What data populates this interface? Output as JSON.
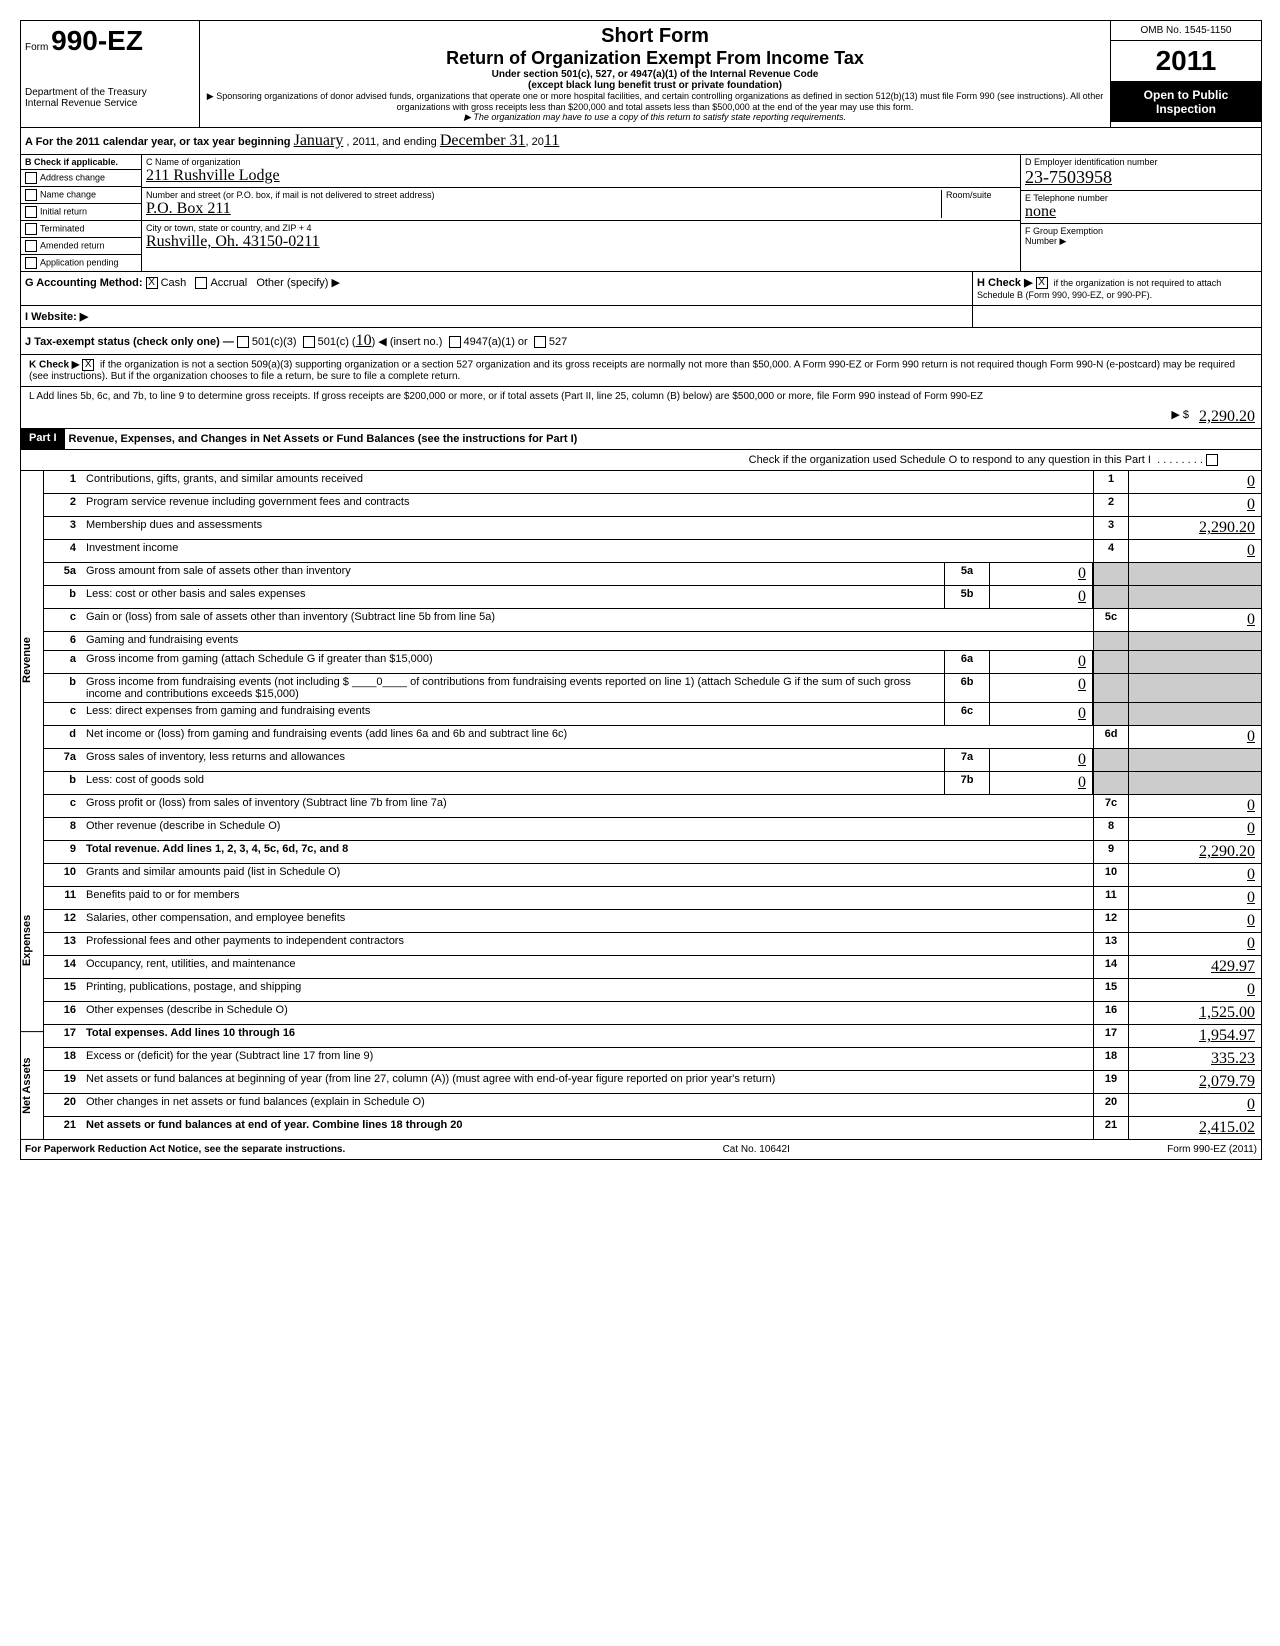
{
  "meta": {
    "omb": "OMB No. 1545-1150",
    "formNumber": "990-EZ",
    "formPrefix": "Form",
    "year": "2011",
    "shortForm": "Short Form",
    "returnTitle": "Return of Organization Exempt From Income Tax",
    "subtitle1": "Under section 501(c), 527, or 4947(a)(1) of the Internal Revenue Code",
    "subtitle2": "(except black lung benefit trust or private foundation)",
    "sponsoring": "▶ Sponsoring organizations of donor advised funds, organizations that operate one or more hospital facilities, and certain controlling organizations as defined in section 512(b)(13) must file Form 990 (see instructions). All other organizations with gross receipts less than $200,000 and total assets less than $500,000 at the end of the year may use this form.",
    "stateReq": "▶ The organization may have to use a copy of this return to satisfy state reporting requirements.",
    "dept": "Department of the Treasury",
    "irs": "Internal Revenue Service",
    "openPublic": "Open to Public Inspection"
  },
  "rowA": {
    "label": "A For the 2011 calendar year, or tax year beginning",
    "begin": "January",
    "mid": ", 2011, and ending",
    "end": "December 31",
    "yr": ", 20",
    "yrVal": "11"
  },
  "colB": {
    "header": "B Check if applicable.",
    "items": [
      "Address change",
      "Name change",
      "Initial return",
      "Terminated",
      "Amended return",
      "Application pending"
    ]
  },
  "colC": {
    "nameLabel": "C Name of organization",
    "nameVal": "211 Rushville Lodge",
    "streetLabel": "Number and street (or P.O. box, if mail is not delivered to street address)",
    "roomLabel": "Room/suite",
    "streetVal": "P.O. Box 211",
    "cityLabel": "City or town, state or country, and ZIP + 4",
    "cityVal": "Rushville, Oh. 43150-0211"
  },
  "colD": {
    "einLabel": "D Employer identification number",
    "einVal": "23-7503958",
    "phoneLabel": "E Telephone number",
    "phoneVal": "none",
    "groupLabel": "F Group Exemption",
    "groupLabel2": "Number ▶"
  },
  "rowG": {
    "label": "G Accounting Method:",
    "cash": "Cash",
    "accrual": "Accrual",
    "other": "Other (specify) ▶"
  },
  "rowH": {
    "label": "H Check ▶",
    "text": "if the organization is not required to attach Schedule B (Form 990, 990-EZ, or 990-PF)."
  },
  "rowI": {
    "label": "I  Website: ▶"
  },
  "rowJ": {
    "label": "J Tax-exempt status (check only one) —",
    "c3": "501(c)(3)",
    "c": "501(c) (",
    "insert": "10",
    "cEnd": ") ◀ (insert no.)",
    "a4947": "4947(a)(1) or",
    "s527": "527"
  },
  "rowK": {
    "label": "K Check ▶",
    "text": "if the organization is not a section 509(a)(3) supporting organization or a section 527 organization and its gross receipts are normally not more than $50,000. A Form 990-EZ or Form 990 return is not required though Form 990-N (e-postcard) may be required (see instructions). But if the organization chooses to file a return, be sure to file a complete return."
  },
  "rowL": {
    "text": "L Add lines 5b, 6c, and 7b, to line 9 to determine gross receipts. If gross receipts are $200,000 or more, or if total assets (Part II, line 25, column (B) below) are $500,000 or more, file Form 990 instead of Form 990-EZ",
    "arrow": "▶ $",
    "val": "2,290.20"
  },
  "part1": {
    "label": "Part I",
    "title": "Revenue, Expenses, and Changes in Net Assets or Fund Balances (see the instructions for Part I)",
    "check": "Check if the organization used Schedule O to respond to any question in this Part I"
  },
  "sideLabels": {
    "revenue": "Revenue",
    "expenses": "Expenses",
    "netassets": "Net Assets"
  },
  "lines": [
    {
      "n": "1",
      "desc": "Contributions, gifts, grants, and similar amounts received",
      "box": "1",
      "val": "0"
    },
    {
      "n": "2",
      "desc": "Program service revenue including government fees and contracts",
      "box": "2",
      "val": "0"
    },
    {
      "n": "3",
      "desc": "Membership dues and assessments",
      "box": "3",
      "val": "2,290.20"
    },
    {
      "n": "4",
      "desc": "Investment income",
      "box": "4",
      "val": "0"
    },
    {
      "n": "5a",
      "desc": "Gross amount from sale of assets other than inventory",
      "sub": "5a",
      "subval": "0"
    },
    {
      "n": "b",
      "desc": "Less: cost or other basis and sales expenses",
      "sub": "5b",
      "subval": "0"
    },
    {
      "n": "c",
      "desc": "Gain or (loss) from sale of assets other than inventory (Subtract line 5b from line 5a)",
      "box": "5c",
      "val": "0"
    },
    {
      "n": "6",
      "desc": "Gaming and fundraising events"
    },
    {
      "n": "a",
      "desc": "Gross income from gaming (attach Schedule G if greater than $15,000)",
      "sub": "6a",
      "subval": "0"
    },
    {
      "n": "b",
      "desc": "Gross income from fundraising events (not including $ ____0____ of contributions from fundraising events reported on line 1) (attach Schedule G if the sum of such gross income and contributions exceeds $15,000)",
      "sub": "6b",
      "subval": "0"
    },
    {
      "n": "c",
      "desc": "Less: direct expenses from gaming and fundraising events",
      "sub": "6c",
      "subval": "0"
    },
    {
      "n": "d",
      "desc": "Net income or (loss) from gaming and fundraising events (add lines 6a and 6b and subtract line 6c)",
      "box": "6d",
      "val": "0"
    },
    {
      "n": "7a",
      "desc": "Gross sales of inventory, less returns and allowances",
      "sub": "7a",
      "subval": "0"
    },
    {
      "n": "b",
      "desc": "Less: cost of goods sold",
      "sub": "7b",
      "subval": "0"
    },
    {
      "n": "c",
      "desc": "Gross profit or (loss) from sales of inventory (Subtract line 7b from line 7a)",
      "box": "7c",
      "val": "0"
    },
    {
      "n": "8",
      "desc": "Other revenue (describe in Schedule O)",
      "box": "8",
      "val": "0"
    },
    {
      "n": "9",
      "desc": "Total revenue. Add lines 1, 2, 3, 4, 5c, 6d, 7c, and 8",
      "box": "9",
      "val": "2,290.20",
      "bold": true
    },
    {
      "n": "10",
      "desc": "Grants and similar amounts paid (list in Schedule O)",
      "box": "10",
      "val": "0"
    },
    {
      "n": "11",
      "desc": "Benefits paid to or for members",
      "box": "11",
      "val": "0"
    },
    {
      "n": "12",
      "desc": "Salaries, other compensation, and employee benefits",
      "box": "12",
      "val": "0"
    },
    {
      "n": "13",
      "desc": "Professional fees and other payments to independent contractors",
      "box": "13",
      "val": "0"
    },
    {
      "n": "14",
      "desc": "Occupancy, rent, utilities, and maintenance",
      "box": "14",
      "val": "429.97"
    },
    {
      "n": "15",
      "desc": "Printing, publications, postage, and shipping",
      "box": "15",
      "val": "0"
    },
    {
      "n": "16",
      "desc": "Other expenses (describe in Schedule O)",
      "box": "16",
      "val": "1,525.00"
    },
    {
      "n": "17",
      "desc": "Total expenses. Add lines 10 through 16",
      "box": "17",
      "val": "1,954.97",
      "bold": true
    },
    {
      "n": "18",
      "desc": "Excess or (deficit) for the year (Subtract line 17 from line 9)",
      "box": "18",
      "val": "335.23"
    },
    {
      "n": "19",
      "desc": "Net assets or fund balances at beginning of year (from line 27, column (A)) (must agree with end-of-year figure reported on prior year's return)",
      "box": "19",
      "val": "2,079.79"
    },
    {
      "n": "20",
      "desc": "Other changes in net assets or fund balances (explain in Schedule O)",
      "box": "20",
      "val": "0"
    },
    {
      "n": "21",
      "desc": "Net assets or fund balances at end of year. Combine lines 18 through 20",
      "box": "21",
      "val": "2,415.02",
      "bold": true
    }
  ],
  "footer": {
    "pra": "For Paperwork Reduction Act Notice, see the separate instructions.",
    "cat": "Cat No. 10642I",
    "form": "Form 990-EZ (2011)"
  }
}
